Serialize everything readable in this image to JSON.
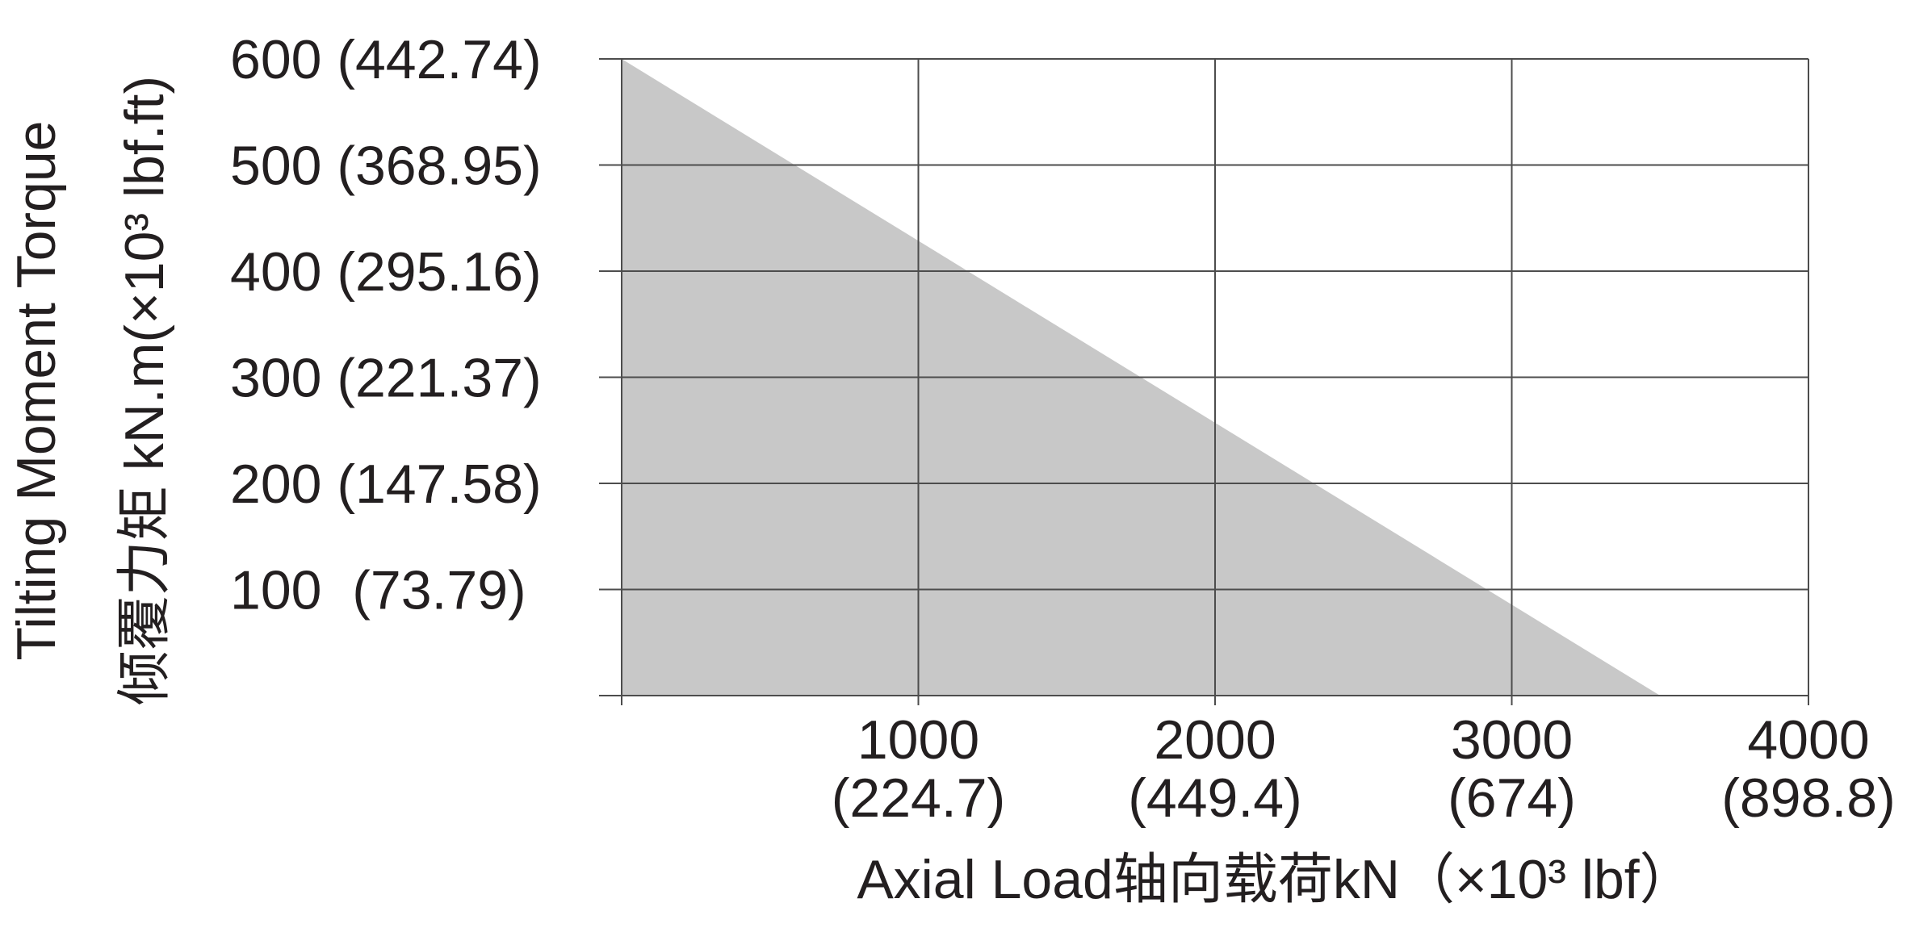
{
  "chart_data": {
    "type": "area",
    "x_axis": {
      "title": "Axial Load轴向载荷kN（×10³ lbf）",
      "range": [
        0,
        4000
      ],
      "ticks": [
        {
          "value": 1000,
          "label": "1000",
          "sublabel": "(224.7)"
        },
        {
          "value": 2000,
          "label": "2000",
          "sublabel": "(449.4)"
        },
        {
          "value": 3000,
          "label": "3000",
          "sublabel": "(674)"
        },
        {
          "value": 4000,
          "label": "4000",
          "sublabel": "(898.8)"
        }
      ]
    },
    "y_axis": {
      "title_line1": "Tilting Moment Torque",
      "title_line2": "倾覆力矩 kN.m(×10³ lbf.ft)",
      "range": [
        0,
        600
      ],
      "ticks": [
        {
          "value": 100,
          "label": "100  (73.79)"
        },
        {
          "value": 200,
          "label": "200 (147.58)"
        },
        {
          "value": 300,
          "label": "300 (221.37)"
        },
        {
          "value": 400,
          "label": "400 (295.16)"
        },
        {
          "value": 500,
          "label": "500 (368.95)"
        },
        {
          "value": 600,
          "label": "600 (442.74)"
        }
      ]
    },
    "series": [
      {
        "points": [
          {
            "x": 0,
            "y": 600
          },
          {
            "x": 3500,
            "y": 0
          }
        ],
        "fill_color": "#c8c8c8"
      }
    ],
    "grid": true,
    "grid_color": "#4d4d4d",
    "text_color": "#231f20"
  }
}
